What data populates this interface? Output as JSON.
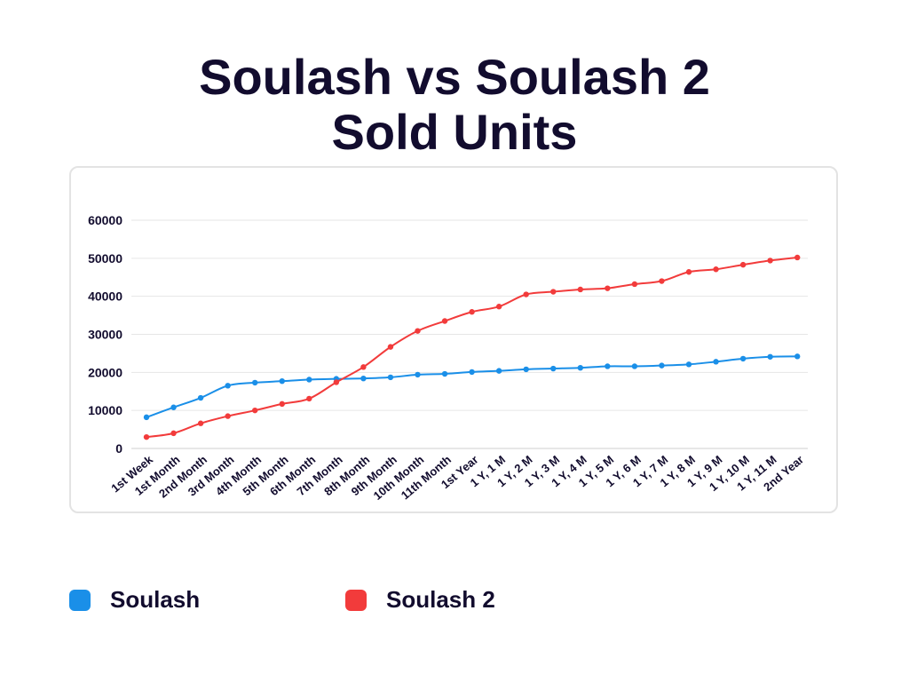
{
  "title_lines": [
    "Soulash vs Soulash 2",
    "Sold Units"
  ],
  "colors": {
    "series_1": "#1a8fe8",
    "series_2": "#f23b3b",
    "grid": "#e6e6e6",
    "text": "#120c2e"
  },
  "chart_data": {
    "type": "line",
    "title": "Soulash vs Soulash 2 Sold Units",
    "xlabel": "",
    "ylabel": "",
    "ylim": [
      0,
      60000
    ],
    "yticks": [
      0,
      10000,
      20000,
      30000,
      40000,
      50000,
      60000
    ],
    "grid": true,
    "legend": "bottom",
    "categories": [
      "1st Week",
      "1st Month",
      "2nd Month",
      "3rd Month",
      "4th Month",
      "5th Month",
      "6th Month",
      "7th Month",
      "8th Month",
      "9th Month",
      "10th Month",
      "11th Month",
      "1st Year",
      "1 Y, 1 M",
      "1 Y, 2 M",
      "1 Y, 3 M",
      "1 Y, 4 M",
      "1 Y, 5 M",
      "1 Y, 6 M",
      "1 Y, 7 M",
      "1 Y, 8 M",
      "1 Y, 9 M",
      "1 Y, 10 M",
      "1 Y, 11 M",
      "2nd Year"
    ],
    "series": [
      {
        "name": "Soulash",
        "values": [
          8200,
          10800,
          13300,
          16500,
          17300,
          17700,
          18100,
          18300,
          18400,
          18700,
          19400,
          19600,
          20100,
          20400,
          20800,
          21000,
          21200,
          21600,
          21600,
          21800,
          22100,
          22800,
          23600,
          24100,
          24200
        ]
      },
      {
        "name": "Soulash 2",
        "values": [
          3000,
          4000,
          6600,
          8500,
          10000,
          11700,
          13100,
          17400,
          21400,
          26700,
          30900,
          33500,
          35900,
          37300,
          40500,
          41200,
          41800,
          42100,
          43200,
          44000,
          46400,
          47100,
          48300,
          49400,
          50200
        ]
      }
    ]
  },
  "legend": [
    {
      "label": "Soulash"
    },
    {
      "label": "Soulash 2"
    }
  ]
}
